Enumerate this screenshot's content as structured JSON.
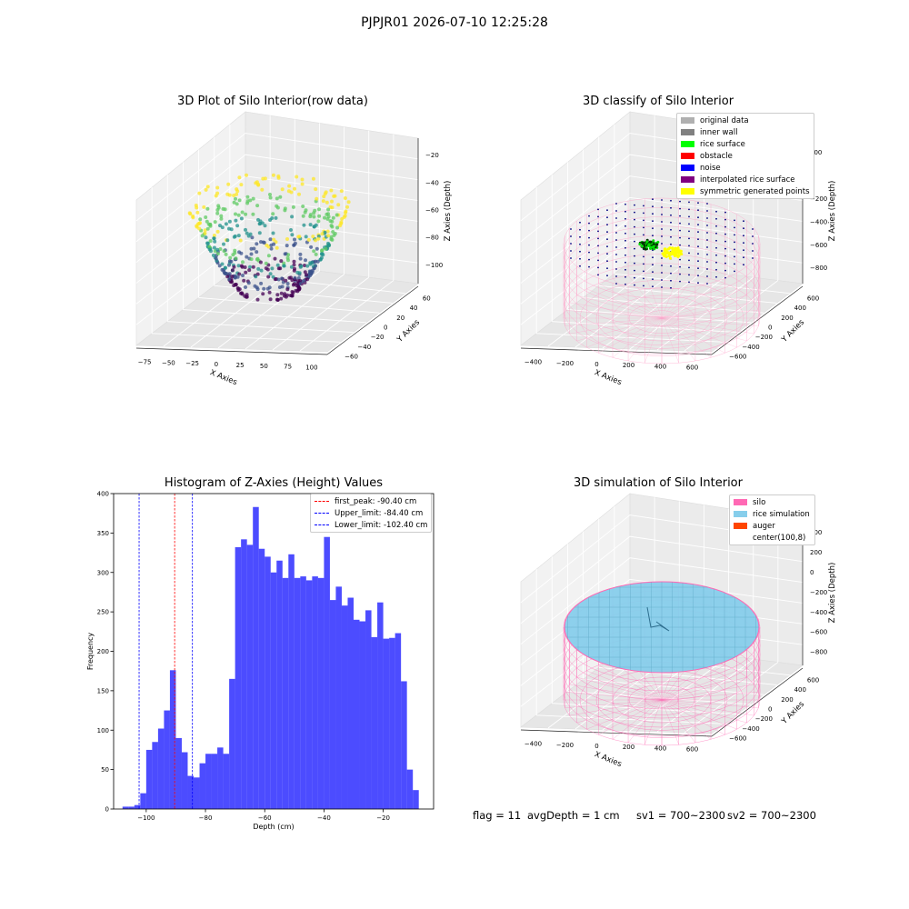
{
  "suptitle": "PJPJR01 2026-07-10 12:25:28",
  "panels": {
    "raw": {
      "title": "3D Plot of Silo Interior(row data)",
      "xlabel": "X Axies",
      "ylabel": "Y Axies",
      "zlabel": "Z Axies (Depth)",
      "xticks": [
        "−75",
        "−50",
        "−25",
        "0",
        "25",
        "50",
        "75",
        "100"
      ],
      "yticks": [
        "60",
        "40",
        "20",
        "0",
        "−20",
        "−40",
        "−60"
      ],
      "zticks": [
        "−20",
        "−40",
        "−60",
        "−80",
        "−100"
      ]
    },
    "classify": {
      "title": "3D classify of Silo Interior",
      "xlabel": "X Axies",
      "ylabel": "Y Axies",
      "zlabel": "Z Axies (Depth)",
      "xticks": [
        "−400",
        "−200",
        "0",
        "200",
        "400",
        "600"
      ],
      "yticks": [
        "600",
        "400",
        "200",
        "0",
        "−200",
        "−400",
        "−600"
      ],
      "zticks": [
        "200",
        "0",
        "−200",
        "−400",
        "−600",
        "−800"
      ],
      "legend": [
        {
          "label": "original data",
          "color": "#b0b0b0"
        },
        {
          "label": "inner wall",
          "color": "#808080"
        },
        {
          "label": "rice surface",
          "color": "#00ff00"
        },
        {
          "label": "obstacle",
          "color": "#ff0000"
        },
        {
          "label": "noise",
          "color": "#0000ff"
        },
        {
          "label": "interpolated rice surface",
          "color": "#800080"
        },
        {
          "label": "symmetric generated points",
          "color": "#ffff00"
        }
      ]
    },
    "sim": {
      "title": "3D simulation of Silo Interior",
      "xlabel": "X Axies",
      "ylabel": "Y Axies",
      "zlabel": "Z Axies (Depth)",
      "xticks": [
        "−400",
        "−200",
        "0",
        "200",
        "400",
        "600"
      ],
      "yticks": [
        "600",
        "400",
        "200",
        "0",
        "−200",
        "−400",
        "−600"
      ],
      "zticks": [
        "400",
        "200",
        "0",
        "−200",
        "−400",
        "−600",
        "−800"
      ],
      "legend": [
        {
          "label": "silo",
          "color": "#ff69b4"
        },
        {
          "label": "rice simulation",
          "color": "#87ceeb"
        },
        {
          "label": "auger",
          "color": "#ff4500"
        },
        {
          "label": "center(100,8)",
          "color": "#ffffff"
        }
      ]
    }
  },
  "footer": {
    "flag": "flag = 11",
    "avg": "avgDepth = 1 cm",
    "sv1": "sv1 = 700~2300",
    "sv2": "sv2 = 700~2300"
  },
  "chart_data": [
    {
      "type": "bar",
      "title": "Histogram of Z-Axies (Height) Values",
      "xlabel": "Depth (cm)",
      "ylabel": "Frequency",
      "xlim": [
        -111,
        -3
      ],
      "ylim": [
        0,
        400
      ],
      "xticks": [
        -100,
        -80,
        -60,
        -40,
        -20
      ],
      "yticks": [
        0,
        50,
        100,
        150,
        200,
        250,
        300,
        350,
        400
      ],
      "bar_color": "#0000ff",
      "bin_start": -108,
      "bin_width": 2,
      "values": [
        3,
        3,
        5,
        20,
        75,
        85,
        102,
        125,
        176,
        90,
        72,
        42,
        40,
        58,
        70,
        70,
        78,
        70,
        165,
        332,
        342,
        335,
        383,
        330,
        320,
        300,
        315,
        293,
        323,
        293,
        295,
        290,
        295,
        293,
        345,
        265,
        282,
        258,
        268,
        240,
        238,
        252,
        218,
        262,
        216,
        217,
        223,
        162,
        50,
        24
      ],
      "vlines": [
        {
          "label": "first_peak: -90.40 cm",
          "x": -90.4,
          "color": "#ff0000"
        },
        {
          "label": "Upper_limit: -84.40 cm",
          "x": -84.4,
          "color": "#0000ff"
        },
        {
          "label": "Lower_limit: -102.40 cm",
          "x": -102.4,
          "color": "#0000ff"
        }
      ],
      "legend_position": "top-right"
    }
  ]
}
